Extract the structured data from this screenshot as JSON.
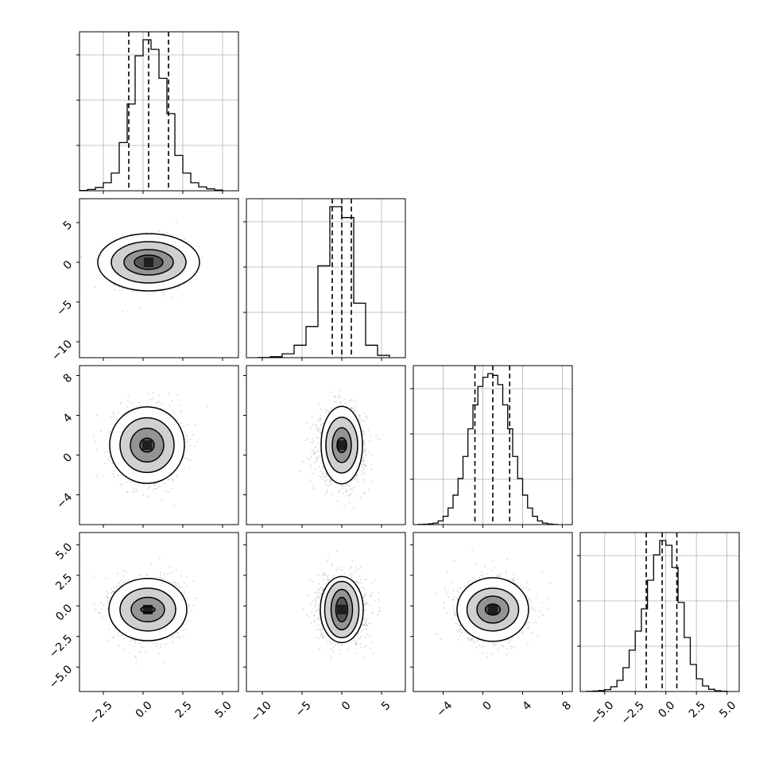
{
  "chart_data": {
    "type": "corner",
    "n_params": 4,
    "grid": true,
    "colors": {
      "line": "#000000",
      "scatter": "#9a9a9a",
      "grid": "#b0b0b0",
      "density_dark": "#1e1e1e"
    },
    "axes_limits": [
      [
        -4,
        6
      ],
      [
        -12,
        8
      ],
      [
        -7,
        9
      ],
      [
        -7,
        6
      ]
    ],
    "tick_values": [
      [
        -2.5,
        0.0,
        2.5,
        5.0
      ],
      [
        -10,
        -5,
        0,
        5
      ],
      [
        -4,
        0,
        4,
        8
      ],
      [
        -5.0,
        -2.5,
        0.0,
        2.5,
        5.0
      ]
    ],
    "tick_labels": [
      [
        "−2.5",
        "0.0",
        "2.5",
        "5.0"
      ],
      [
        "−10",
        "−5",
        "0",
        "5"
      ],
      [
        "−4",
        "0",
        "4",
        "8"
      ],
      [
        "−5.0",
        "−2.5",
        "0.0",
        "2.5",
        "5.0"
      ]
    ],
    "marginals": [
      {
        "param": 0,
        "quantiles": [
          -0.9,
          0.35,
          1.6
        ],
        "centers": [
          -3.75,
          -3.25,
          -2.75,
          -2.25,
          -1.75,
          -1.25,
          -0.75,
          -0.25,
          0.25,
          0.75,
          1.25,
          1.75,
          2.25,
          2.75,
          3.25,
          3.75,
          4.25,
          4.75
        ],
        "counts": [
          1,
          4,
          10,
          25,
          55,
          150,
          270,
          420,
          470,
          440,
          350,
          240,
          110,
          55,
          25,
          12,
          6,
          2
        ]
      },
      {
        "param": 1,
        "quantiles": [
          -1.2,
          0.0,
          1.2
        ],
        "centers": [
          -9.75,
          -8.25,
          -6.75,
          -5.25,
          -3.75,
          -2.25,
          -0.75,
          0.75,
          2.25,
          3.75,
          5.25
        ],
        "counts": [
          2,
          12,
          50,
          160,
          400,
          1180,
          1940,
          1800,
          700,
          160,
          30
        ]
      },
      {
        "param": 2,
        "quantiles": [
          -0.8,
          1.0,
          2.7
        ],
        "centers": [
          -6.25,
          -5.75,
          -5.25,
          -4.75,
          -4.25,
          -3.75,
          -3.25,
          -2.75,
          -2.25,
          -1.75,
          -1.25,
          -0.75,
          -0.25,
          0.25,
          0.75,
          1.25,
          1.75,
          2.25,
          2.75,
          3.25,
          3.75,
          4.25,
          4.75,
          5.25,
          5.75,
          6.25,
          6.75,
          7.25
        ],
        "counts": [
          1,
          2,
          4,
          8,
          20,
          45,
          90,
          160,
          250,
          370,
          520,
          650,
          750,
          800,
          820,
          810,
          760,
          650,
          520,
          370,
          250,
          160,
          90,
          45,
          20,
          8,
          3,
          1
        ]
      },
      {
        "param": 3,
        "quantiles": [
          -1.6,
          -0.3,
          0.9
        ],
        "centers": [
          -6.25,
          -5.75,
          -5.25,
          -4.75,
          -4.25,
          -3.75,
          -3.25,
          -2.75,
          -2.25,
          -1.75,
          -1.25,
          -0.75,
          -0.25,
          0.25,
          0.75,
          1.25,
          1.75,
          2.25,
          2.75,
          3.25,
          3.75,
          4.25,
          4.75
        ],
        "counts": [
          1,
          3,
          6,
          12,
          30,
          70,
          150,
          260,
          380,
          520,
          700,
          860,
          950,
          920,
          780,
          560,
          340,
          170,
          80,
          35,
          14,
          5,
          2
        ]
      }
    ],
    "pairs": [
      {
        "x": 0,
        "y": 1,
        "center": [
          0.35,
          0.0
        ],
        "sigma": [
          1.0,
          1.4
        ],
        "contours": [
          {
            "level": 0.5,
            "rx": 0.9,
            "ry": 0.9
          },
          {
            "level": 1.0,
            "rx": 1.55,
            "ry": 1.6
          },
          {
            "level": 1.5,
            "rx": 2.35,
            "ry": 2.6
          },
          {
            "level": 2.0,
            "rx": 3.2,
            "ry": 3.6
          }
        ]
      },
      {
        "x": 0,
        "y": 2,
        "center": [
          0.25,
          1.0
        ],
        "sigma": [
          1.0,
          1.7
        ],
        "contours": [
          {
            "level": 0.5,
            "rx": 0.45,
            "ry": 0.7
          },
          {
            "level": 1.0,
            "rx": 1.05,
            "ry": 1.7
          },
          {
            "level": 1.5,
            "rx": 1.7,
            "ry": 2.75
          },
          {
            "level": 2.0,
            "rx": 2.35,
            "ry": 3.85
          }
        ]
      },
      {
        "x": 1,
        "y": 2,
        "center": [
          0.0,
          1.0
        ],
        "sigma": [
          1.4,
          1.7
        ],
        "contours": [
          {
            "level": 0.5,
            "rx": 0.6,
            "ry": 0.75
          },
          {
            "level": 1.0,
            "rx": 1.2,
            "ry": 1.75
          },
          {
            "level": 1.5,
            "rx": 2.0,
            "ry": 2.8
          },
          {
            "level": 2.0,
            "rx": 2.6,
            "ry": 3.9
          }
        ]
      },
      {
        "x": 0,
        "y": 3,
        "center": [
          0.3,
          -0.3
        ],
        "sigma": [
          1.0,
          1.2
        ],
        "contours": [
          {
            "level": 0.5,
            "rx": 0.45,
            "ry": 0.25
          },
          {
            "level": 1.0,
            "rx": 1.05,
            "ry": 1.0
          },
          {
            "level": 1.5,
            "rx": 1.75,
            "ry": 1.75
          },
          {
            "level": 2.0,
            "rx": 2.45,
            "ry": 2.55
          }
        ]
      },
      {
        "x": 1,
        "y": 3,
        "center": [
          0.0,
          -0.3
        ],
        "sigma": [
          1.4,
          1.2
        ],
        "contours": [
          {
            "level": 0.5,
            "rx": 0.75,
            "ry": 1.0
          },
          {
            "level": 1.0,
            "rx": 1.35,
            "ry": 1.65
          },
          {
            "level": 1.5,
            "rx": 2.15,
            "ry": 2.3
          },
          {
            "level": 2.0,
            "rx": 2.7,
            "ry": 2.7
          }
        ]
      },
      {
        "x": 2,
        "y": 3,
        "center": [
          1.0,
          -0.3
        ],
        "sigma": [
          1.7,
          1.2
        ],
        "contours": [
          {
            "level": 0.5,
            "rx": 0.75,
            "ry": 0.45
          },
          {
            "level": 1.0,
            "rx": 1.6,
            "ry": 1.1
          },
          {
            "level": 1.5,
            "rx": 2.6,
            "ry": 1.75
          },
          {
            "level": 2.0,
            "rx": 3.6,
            "ry": 2.6
          }
        ]
      }
    ]
  }
}
